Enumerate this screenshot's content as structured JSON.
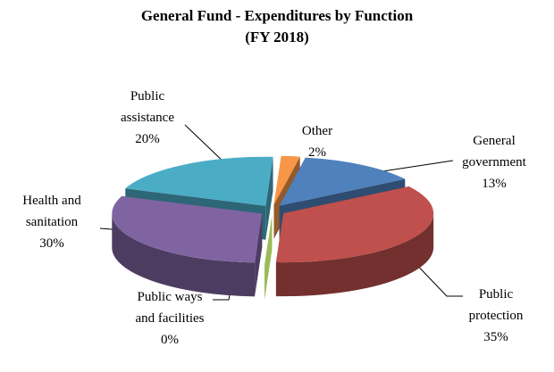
{
  "chart_data": {
    "type": "pie",
    "title": "General Fund - Expenditures by Function",
    "subtitle": "(FY 2018)",
    "categories": [
      "General government",
      "Public protection",
      "Public ways and facilities",
      "Health and sanitation",
      "Public assistance",
      "Other"
    ],
    "values": [
      13,
      35,
      0,
      30,
      20,
      2
    ],
    "value_labels": [
      "13%",
      "35%",
      "0%",
      "30%",
      "20%",
      "2%"
    ],
    "colors": [
      "#4f81bd",
      "#c0504d",
      "#9bbb59",
      "#8064a2",
      "#4bacc6",
      "#f79646"
    ]
  }
}
